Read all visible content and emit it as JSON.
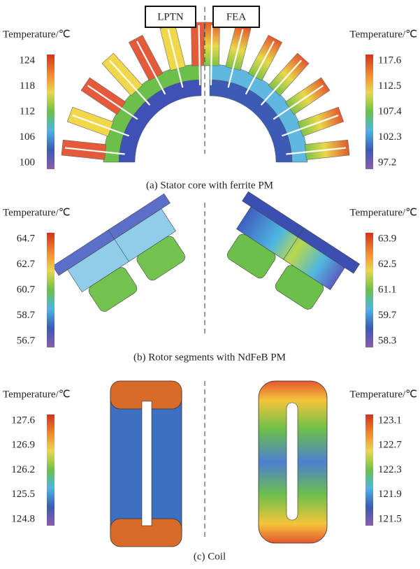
{
  "labels": {
    "lptn": "LPTN",
    "fea": "FEA"
  },
  "panels": [
    {
      "caption": "(a) Stator core with ferrite PM",
      "left_colorbar": {
        "title": "Temperature/℃",
        "ticks": [
          124,
          118,
          112,
          106,
          100
        ]
      },
      "right_colorbar": {
        "title": "Temperature/℃",
        "ticks": [
          117.6,
          112.5,
          107.4,
          102.3,
          97.2
        ]
      }
    },
    {
      "caption": "(b) Rotor segments with NdFeB PM",
      "left_colorbar": {
        "title": "Temperature/℃",
        "ticks": [
          64.7,
          62.7,
          60.7,
          58.7,
          56.7
        ]
      },
      "right_colorbar": {
        "title": "Temperature/℃",
        "ticks": [
          63.9,
          62.5,
          61.1,
          59.7,
          58.3
        ]
      }
    },
    {
      "caption": "(c) Coil",
      "left_colorbar": {
        "title": "Temperature/℃",
        "ticks": [
          127.6,
          126.9,
          126.2,
          125.5,
          124.8
        ]
      },
      "right_colorbar": {
        "title": "Temperature/℃",
        "ticks": [
          123.1,
          122.7,
          122.3,
          121.9,
          121.5
        ]
      }
    }
  ]
}
